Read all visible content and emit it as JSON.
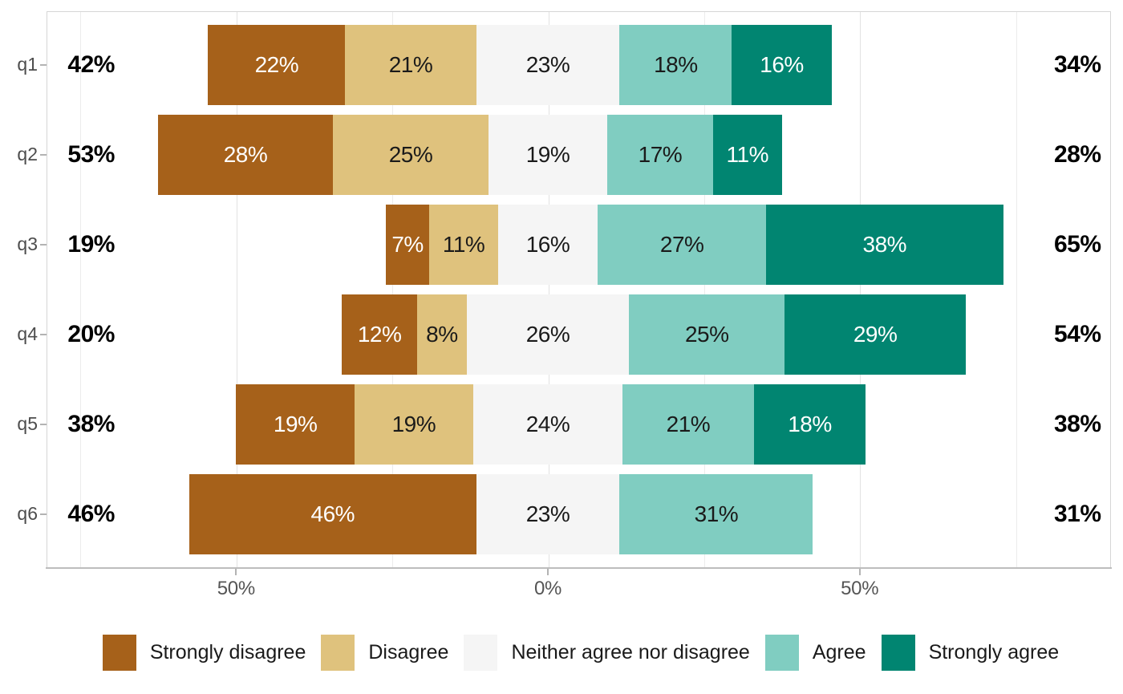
{
  "chart_data": {
    "type": "bar",
    "subtype": "diverging-stacked-likert",
    "title": "",
    "xlabel": "",
    "ylabel": "",
    "categories": [
      "q1",
      "q2",
      "q3",
      "q4",
      "q5",
      "q6"
    ],
    "series": [
      {
        "name": "Strongly disagree",
        "color": "#A6611A",
        "label_color": "#FFFFFF",
        "values": [
          22,
          28,
          7,
          12,
          19,
          46
        ]
      },
      {
        "name": "Disagree",
        "color": "#DFC27D",
        "label_color": "#1A1A1A",
        "values": [
          21,
          25,
          11,
          8,
          19,
          0
        ]
      },
      {
        "name": "Neither agree nor disagree",
        "color": "#F5F5F5",
        "label_color": "#1A1A1A",
        "values": [
          23,
          19,
          16,
          26,
          24,
          23
        ]
      },
      {
        "name": "Agree",
        "color": "#80CDC1",
        "label_color": "#1A1A1A",
        "values": [
          18,
          17,
          27,
          25,
          21,
          31
        ]
      },
      {
        "name": "Strongly agree",
        "color": "#018571",
        "label_color": "#FFFFFF",
        "values": [
          16,
          11,
          38,
          29,
          18,
          0
        ]
      }
    ],
    "value_label_suffix": "%",
    "totals_disagree_side": [
      "42%",
      "53%",
      "19%",
      "20%",
      "38%",
      "46%"
    ],
    "totals_agree_side": [
      "34%",
      "28%",
      "65%",
      "54%",
      "38%",
      "31%"
    ],
    "neutral_centered_at_zero": true,
    "x_axis": {
      "ticks": [
        {
          "pos": -50,
          "label": "50%"
        },
        {
          "pos": 0,
          "label": "0%"
        },
        {
          "pos": 50,
          "label": "50%"
        }
      ],
      "major_gridlines": [
        -50,
        0,
        50
      ],
      "minor_gridlines": [
        -75,
        -25,
        25,
        75
      ],
      "xlim": [
        -80.4,
        90.3
      ]
    },
    "grid": true,
    "legend_position": "bottom",
    "legend": [
      "Strongly disagree",
      "Disagree",
      "Neither agree nor disagree",
      "Agree",
      "Strongly agree"
    ]
  }
}
